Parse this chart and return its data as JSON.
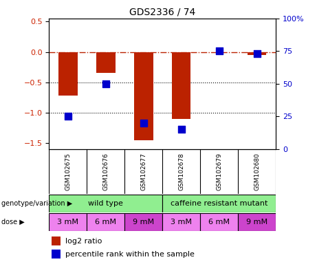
{
  "title": "GDS2336 / 74",
  "samples": [
    "GSM102675",
    "GSM102676",
    "GSM102677",
    "GSM102678",
    "GSM102679",
    "GSM102680"
  ],
  "log2_ratio": [
    -0.72,
    -0.35,
    -1.45,
    -1.1,
    0.0,
    -0.05
  ],
  "percentile_rank_pct": [
    25,
    50,
    20,
    15,
    75,
    73
  ],
  "bar_color": "#BB2200",
  "dot_color": "#0000CC",
  "ylim_left": [
    -1.6,
    0.55
  ],
  "ylim_right": [
    0,
    100
  ],
  "yticks_left": [
    0.5,
    0.0,
    -0.5,
    -1.0,
    -1.5
  ],
  "yticks_right": [
    100,
    75,
    50,
    25,
    0
  ],
  "dotted_lines": [
    -0.5,
    -1.0
  ],
  "genotype_color_wt": "#90EE90",
  "genotype_color_cr": "#90EE90",
  "dose_labels": [
    "3 mM",
    "6 mM",
    "9 mM",
    "3 mM",
    "6 mM",
    "9 mM"
  ],
  "dose_color_light": "#EE82EE",
  "dose_color_dark": "#CC44CC",
  "bg_color": "#FFFFFF",
  "tick_label_color_left": "#CC2200",
  "tick_label_color_right": "#0000CC",
  "bar_width": 0.5,
  "sample_bg": "#C8C8C8"
}
